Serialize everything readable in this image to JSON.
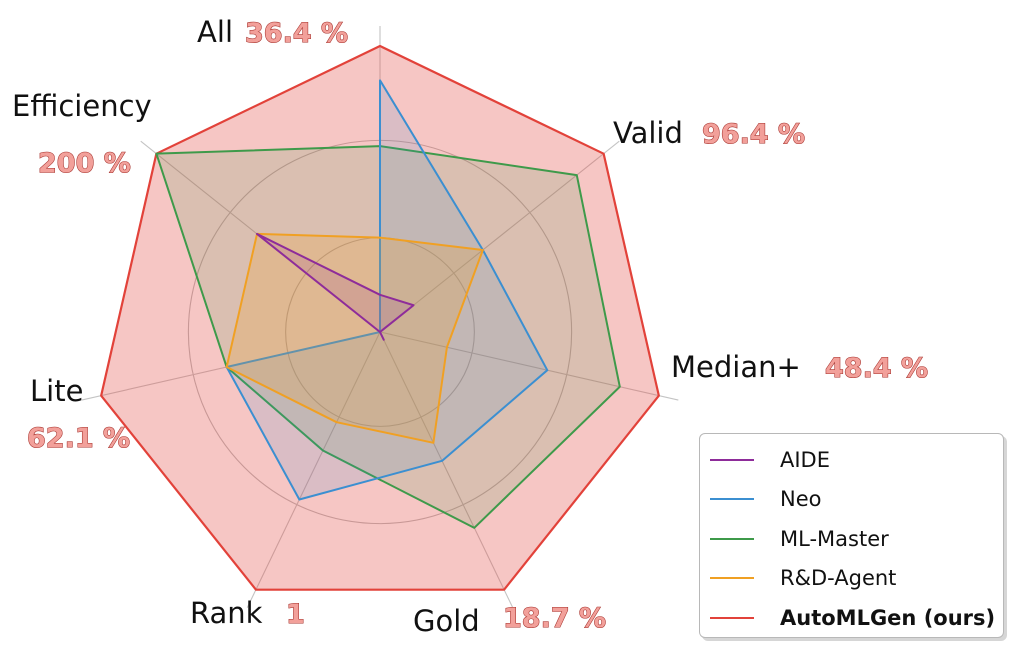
{
  "chart_data": {
    "type": "radar",
    "axes": [
      {
        "name": "All",
        "value_label": "36.4 %"
      },
      {
        "name": "Valid",
        "value_label": "96.4 %"
      },
      {
        "name": "Median+",
        "value_label": "48.4 %"
      },
      {
        "name": "Gold",
        "value_label": "18.7 %"
      },
      {
        "name": "Rank",
        "value_label": "1"
      },
      {
        "name": "Lite",
        "value_label": "62.1 %"
      },
      {
        "name": "Efficiency",
        "value_label": "200 %"
      }
    ],
    "range": [
      0,
      1
    ],
    "grid_rings": [
      0.33,
      0.67,
      1.0
    ],
    "series": [
      {
        "name": "AIDE",
        "color": "#8e2c9a",
        "fill_opacity": 0.15,
        "values": [
          0.13,
          0.15,
          0.0,
          0.03,
          0.0,
          0.0,
          0.55
        ]
      },
      {
        "name": "Neo",
        "color": "#3b8fd1",
        "fill_opacity": 0.15,
        "values": [
          0.88,
          0.46,
          0.6,
          0.5,
          0.65,
          0.55,
          0.0
        ]
      },
      {
        "name": "ML-Master",
        "color": "#3e9a4a",
        "fill_opacity": 0.15,
        "values": [
          0.65,
          0.88,
          0.86,
          0.76,
          0.46,
          0.55,
          1.0
        ]
      },
      {
        "name": "R&D-Agent",
        "color": "#f0a023",
        "fill_opacity": 0.22,
        "values": [
          0.33,
          0.46,
          0.24,
          0.43,
          0.35,
          0.55,
          0.55
        ]
      },
      {
        "name": "AutoMLGen (ours)",
        "color": "#e2423a",
        "fill_opacity": 0.3,
        "values": [
          1.0,
          1.0,
          1.0,
          1.0,
          1.0,
          1.0,
          1.0
        ]
      }
    ],
    "legend_position": "bottom-right",
    "legend_bold": "AutoMLGen (ours)"
  }
}
